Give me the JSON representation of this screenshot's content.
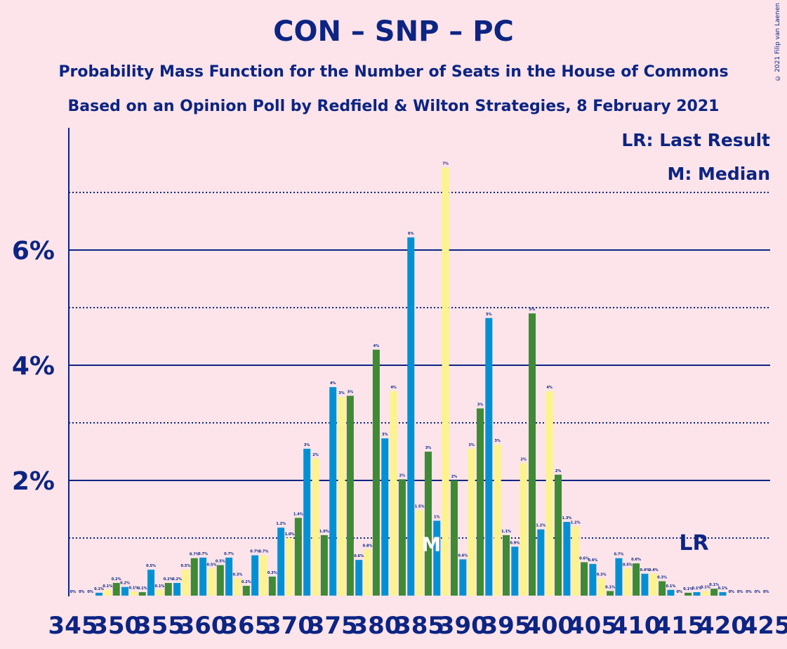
{
  "title": "CON – SNP – PC",
  "subtitle1": "Probability Mass Function for the Number of Seats in the House of Commons",
  "subtitle2": "Based on an Opinion Poll by Redfield & Wilton Strategies, 8 February 2021",
  "copyright": "© 2021 Filip van Laenen",
  "legend": {
    "lr": "LR: Last Result",
    "m": "M: Median"
  },
  "markers": {
    "median_label": "M",
    "last_result_label": "LR",
    "median_seat": 387,
    "last_result_seat": 417
  },
  "colors": {
    "background": "#fce4ea",
    "text": "#0c2483",
    "con": "#0091d5",
    "snp": "#fdf38e",
    "pc": "#3e8a35"
  },
  "chart_data": {
    "type": "bar",
    "xlabel": "",
    "ylabel": "",
    "ylim": [
      0,
      8.2
    ],
    "y_ticks": [
      {
        "value": 2,
        "label": "2%"
      },
      {
        "value": 4,
        "label": "4%"
      },
      {
        "value": 6,
        "label": "6%"
      }
    ],
    "minor_gridlines": [
      1,
      3,
      5,
      7
    ],
    "x_tick_labels": [
      "345",
      "350",
      "355",
      "360",
      "365",
      "370",
      "375",
      "380",
      "385",
      "390",
      "395",
      "400",
      "405",
      "410",
      "415",
      "420",
      "425"
    ],
    "x_tick_step": 5,
    "x_first": 345,
    "bar_colors_cycle": [
      "#0091d5",
      "#fdf38e",
      "#3e8a35"
    ],
    "bars": [
      {
        "seat": 345,
        "value": 0.0,
        "label": "0%"
      },
      {
        "seat": 346,
        "value": 0.0,
        "label": "0%"
      },
      {
        "seat": 347,
        "value": 0.0,
        "label": "0%"
      },
      {
        "seat": 348,
        "value": 0.05,
        "label": "0.1%"
      },
      {
        "seat": 349,
        "value": 0.1,
        "label": "0.1%"
      },
      {
        "seat": 350,
        "value": 0.22,
        "label": "0.2%"
      },
      {
        "seat": 351,
        "value": 0.15,
        "label": "0.2%"
      },
      {
        "seat": 352,
        "value": 0.07,
        "label": "0.1%"
      },
      {
        "seat": 353,
        "value": 0.06,
        "label": "0.1%"
      },
      {
        "seat": 354,
        "value": 0.45,
        "label": "0.5%"
      },
      {
        "seat": 355,
        "value": 0.1,
        "label": "0.1%"
      },
      {
        "seat": 356,
        "value": 0.22,
        "label": "0.2%"
      },
      {
        "seat": 357,
        "value": 0.22,
        "label": "0.2%"
      },
      {
        "seat": 358,
        "value": 0.45,
        "label": "0.5%"
      },
      {
        "seat": 359,
        "value": 0.65,
        "label": "0.7%"
      },
      {
        "seat": 360,
        "value": 0.66,
        "label": "0.7%"
      },
      {
        "seat": 361,
        "value": 0.47,
        "label": "0.5%"
      },
      {
        "seat": 362,
        "value": 0.53,
        "label": "0.5%"
      },
      {
        "seat": 363,
        "value": 0.66,
        "label": "0.7%"
      },
      {
        "seat": 364,
        "value": 0.3,
        "label": "0.3%"
      },
      {
        "seat": 365,
        "value": 0.17,
        "label": "0.2%"
      },
      {
        "seat": 366,
        "value": 0.7,
        "label": "0.7%"
      },
      {
        "seat": 367,
        "value": 0.7,
        "label": "0.7%"
      },
      {
        "seat": 368,
        "value": 0.33,
        "label": "0.3%"
      },
      {
        "seat": 369,
        "value": 1.18,
        "label": "1.2%"
      },
      {
        "seat": 370,
        "value": 1.0,
        "label": "1.0%"
      },
      {
        "seat": 371,
        "value": 1.35,
        "label": "1.4%"
      },
      {
        "seat": 372,
        "value": 2.55,
        "label": "3%"
      },
      {
        "seat": 373,
        "value": 2.38,
        "label": "2%"
      },
      {
        "seat": 374,
        "value": 1.05,
        "label": "1.0%"
      },
      {
        "seat": 375,
        "value": 3.62,
        "label": "4%"
      },
      {
        "seat": 376,
        "value": 3.45,
        "label": "3%"
      },
      {
        "seat": 377,
        "value": 3.47,
        "label": "3%"
      },
      {
        "seat": 378,
        "value": 0.62,
        "label": "0.6%"
      },
      {
        "seat": 379,
        "value": 0.8,
        "label": "0.8%"
      },
      {
        "seat": 380,
        "value": 4.27,
        "label": "4%"
      },
      {
        "seat": 381,
        "value": 2.73,
        "label": "3%"
      },
      {
        "seat": 382,
        "value": 3.55,
        "label": "4%"
      },
      {
        "seat": 383,
        "value": 2.02,
        "label": "2%"
      },
      {
        "seat": 384,
        "value": 6.22,
        "label": "6%"
      },
      {
        "seat": 385,
        "value": 1.48,
        "label": "1.5%"
      },
      {
        "seat": 386,
        "value": 2.5,
        "label": "3%"
      },
      {
        "seat": 387,
        "value": 1.3,
        "label": "1%"
      },
      {
        "seat": 388,
        "value": 7.43,
        "label": "7%"
      },
      {
        "seat": 389,
        "value": 2.0,
        "label": "2%"
      },
      {
        "seat": 390,
        "value": 0.63,
        "label": "0.6%"
      },
      {
        "seat": 391,
        "value": 2.55,
        "label": "3%"
      },
      {
        "seat": 392,
        "value": 3.25,
        "label": "3%"
      },
      {
        "seat": 393,
        "value": 4.82,
        "label": "5%"
      },
      {
        "seat": 394,
        "value": 2.62,
        "label": "3%"
      },
      {
        "seat": 395,
        "value": 1.05,
        "label": "1.1%"
      },
      {
        "seat": 396,
        "value": 0.85,
        "label": "0.9%"
      },
      {
        "seat": 397,
        "value": 2.3,
        "label": "2%"
      },
      {
        "seat": 398,
        "value": 4.9,
        "label": "5%"
      },
      {
        "seat": 399,
        "value": 1.15,
        "label": "1.2%"
      },
      {
        "seat": 400,
        "value": 3.55,
        "label": "4%"
      },
      {
        "seat": 401,
        "value": 2.1,
        "label": "2%"
      },
      {
        "seat": 402,
        "value": 1.28,
        "label": "1.3%"
      },
      {
        "seat": 403,
        "value": 1.2,
        "label": "1.2%"
      },
      {
        "seat": 404,
        "value": 0.58,
        "label": "0.6%"
      },
      {
        "seat": 405,
        "value": 0.55,
        "label": "0.6%"
      },
      {
        "seat": 406,
        "value": 0.3,
        "label": "0.3%"
      },
      {
        "seat": 407,
        "value": 0.08,
        "label": "0.1%"
      },
      {
        "seat": 408,
        "value": 0.65,
        "label": "0.7%"
      },
      {
        "seat": 409,
        "value": 0.47,
        "label": "0.5%"
      },
      {
        "seat": 410,
        "value": 0.56,
        "label": "0.6%"
      },
      {
        "seat": 411,
        "value": 0.38,
        "label": "0.4%"
      },
      {
        "seat": 412,
        "value": 0.38,
        "label": "0.4%"
      },
      {
        "seat": 413,
        "value": 0.25,
        "label": "0.3%"
      },
      {
        "seat": 414,
        "value": 0.1,
        "label": "0.1%"
      },
      {
        "seat": 415,
        "value": 0.0,
        "label": "0%"
      },
      {
        "seat": 416,
        "value": 0.05,
        "label": "0.1%"
      },
      {
        "seat": 417,
        "value": 0.06,
        "label": "0.1%"
      },
      {
        "seat": 418,
        "value": 0.08,
        "label": "0.1%"
      },
      {
        "seat": 419,
        "value": 0.12,
        "label": "0.1%"
      },
      {
        "seat": 420,
        "value": 0.06,
        "label": "0.1%"
      },
      {
        "seat": 421,
        "value": 0.0,
        "label": "0%"
      },
      {
        "seat": 422,
        "value": 0.0,
        "label": "0%"
      },
      {
        "seat": 423,
        "value": 0.0,
        "label": "0%"
      },
      {
        "seat": 424,
        "value": 0.0,
        "label": "0%"
      },
      {
        "seat": 425,
        "value": 0.0,
        "label": "0%"
      }
    ]
  }
}
